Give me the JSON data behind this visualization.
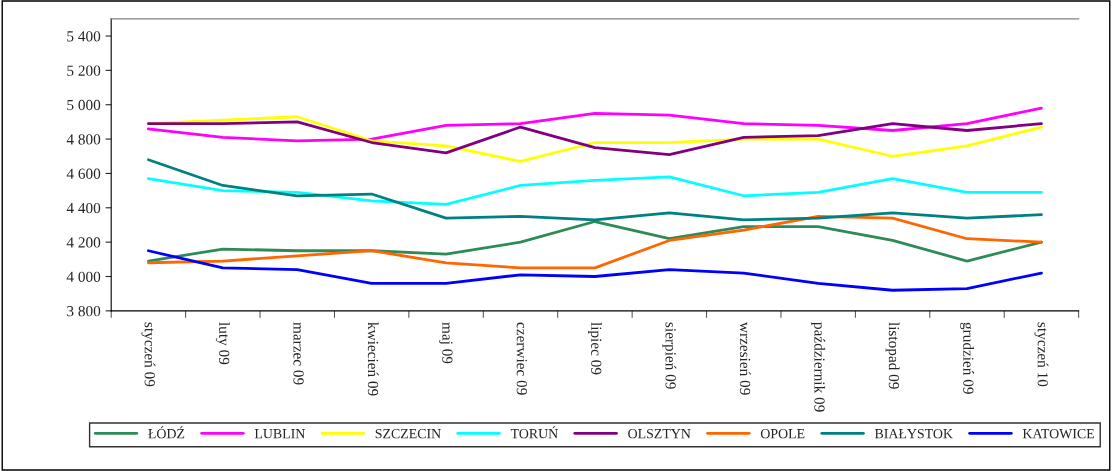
{
  "chart_data": {
    "type": "line",
    "categories": [
      "styczeń 09",
      "luty 09",
      "marzec 09",
      "kwiecień 09",
      "maj 09",
      "czerwiec 09",
      "lipiec 09",
      "sierpień 09",
      "wrzesień 09",
      "październik 09",
      "listopad 09",
      "grudzień 09",
      "styczeń 10"
    ],
    "series": [
      {
        "name": "ŁÓDŹ",
        "color": "#2e8b57",
        "values": [
          4090,
          4160,
          4150,
          4150,
          4130,
          4200,
          4320,
          4220,
          4290,
          4290,
          4210,
          4090,
          4200
        ]
      },
      {
        "name": "LUBLIN",
        "color": "#ff00ff",
        "values": [
          4860,
          4810,
          4790,
          4800,
          4880,
          4890,
          4950,
          4940,
          4890,
          4880,
          4850,
          4890,
          4980
        ]
      },
      {
        "name": "SZCZECIN",
        "color": "#ffff00",
        "values": [
          4890,
          4910,
          4930,
          4790,
          4760,
          4670,
          4780,
          4780,
          4800,
          4800,
          4700,
          4760,
          4870
        ]
      },
      {
        "name": "TORUŃ",
        "color": "#00ffff",
        "values": [
          4570,
          4500,
          4490,
          4440,
          4420,
          4530,
          4560,
          4580,
          4470,
          4490,
          4570,
          4490,
          4490
        ]
      },
      {
        "name": "OLSZTYN",
        "color": "#800080",
        "values": [
          4890,
          4890,
          4900,
          4780,
          4720,
          4870,
          4750,
          4710,
          4810,
          4820,
          4890,
          4850,
          4890
        ]
      },
      {
        "name": "OPOLE",
        "color": "#ff6600",
        "values": [
          4080,
          4090,
          4120,
          4150,
          4080,
          4050,
          4050,
          4210,
          4270,
          4350,
          4340,
          4220,
          4200
        ]
      },
      {
        "name": "BIAŁYSTOK",
        "color": "#008080",
        "values": [
          4680,
          4530,
          4470,
          4480,
          4340,
          4350,
          4330,
          4370,
          4330,
          4340,
          4370,
          4340,
          4360
        ]
      },
      {
        "name": "KATOWICE",
        "color": "#0000ff",
        "values": [
          4150,
          4050,
          4040,
          3960,
          3960,
          4010,
          4000,
          4040,
          4020,
          3960,
          3920,
          3930,
          4020
        ]
      }
    ],
    "ylim": [
      3800,
      5500
    ],
    "yticks": [
      {
        "value": 3800,
        "label": "3 800"
      },
      {
        "value": 4000,
        "label": "4 000"
      },
      {
        "value": 4200,
        "label": "4 200"
      },
      {
        "value": 4400,
        "label": "4 400"
      },
      {
        "value": 4600,
        "label": "4 600"
      },
      {
        "value": 4800,
        "label": "4 800"
      },
      {
        "value": 5000,
        "label": "5 000"
      },
      {
        "value": 5200,
        "label": "5 200"
      },
      {
        "value": 5400,
        "label": "5 400"
      }
    ],
    "grid": false,
    "legend": "bottom",
    "marker": "none",
    "line_style": "solid"
  }
}
